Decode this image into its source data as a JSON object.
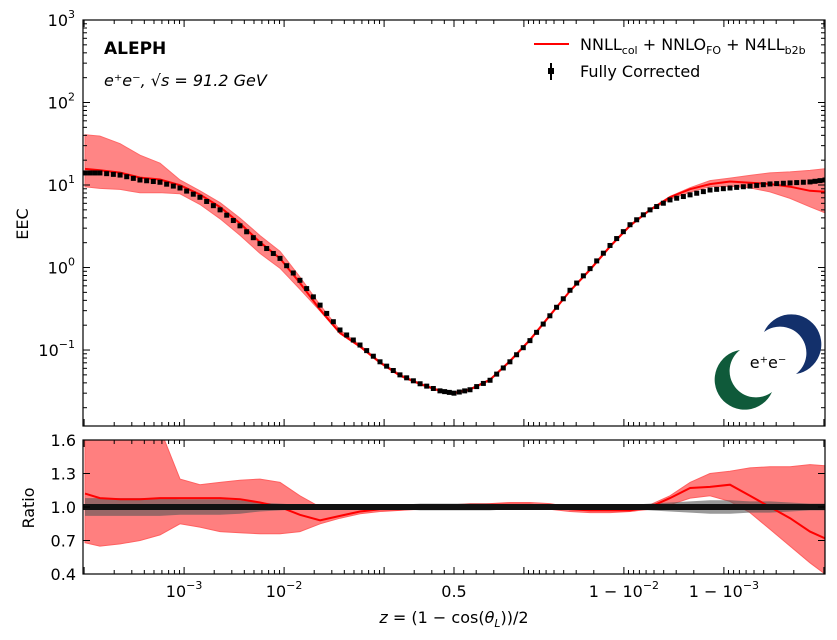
{
  "chart_data": [
    {
      "type": "line",
      "panel": "main",
      "ylabel": "EEC",
      "yscale": "log",
      "xscale": "log-mirrored about 0.5",
      "xlim": [
        9.75e-05,
        0.9999025
      ],
      "ylim": [
        0.012,
        1000
      ],
      "y_ticks": [
        {
          "v": 1000,
          "base": "10",
          "exp": "3"
        },
        {
          "v": 100,
          "base": "10",
          "exp": "2"
        },
        {
          "v": 10,
          "base": "10",
          "exp": "1"
        },
        {
          "v": 1,
          "base": "10",
          "exp": "0"
        },
        {
          "v": 0.1,
          "base": "10",
          "exp": "−1"
        }
      ],
      "annotations": {
        "experiment": "ALEPH",
        "process": "e⁺e⁻, √s = 91.2 GeV",
        "logo_text": "e⁺e⁻"
      },
      "legend": {
        "placement": "top-right",
        "theory": {
          "main": "NNLL",
          "sub1": "col",
          "mid": " + NNLO",
          "sub2": "FO",
          "mid2": " + N4LL",
          "sub3": "b2b"
        },
        "data": "Fully Corrected"
      },
      "colors": {
        "theory": "#ff0000",
        "band": "#ff7f7f",
        "data": "#000000",
        "data_band": "#555555"
      },
      "z": [
        0.000102,
        0.000144,
        0.000229,
        0.000362,
        0.000574,
        0.00091,
        0.00144,
        0.00229,
        0.00362,
        0.00574,
        0.0091,
        0.0144,
        0.0229,
        0.0362,
        0.0574,
        0.091,
        0.144,
        0.229,
        0.362,
        0.5,
        0.654,
        0.782,
        0.862,
        0.913,
        0.945,
        0.9654,
        0.9782,
        0.98623,
        0.99131,
        0.99452,
        0.99654,
        0.99782,
        0.998623,
        0.999131,
        0.999452,
        0.999654,
        0.999782,
        0.9998623,
        0.9999025
      ],
      "data_eec": [
        14,
        14,
        13.2,
        11.5,
        10.8,
        9.2,
        7.1,
        5.0,
        3.2,
        1.95,
        1.29,
        0.7,
        0.35,
        0.175,
        0.115,
        0.072,
        0.05,
        0.039,
        0.032,
        0.03,
        0.033,
        0.043,
        0.072,
        0.13,
        0.26,
        0.53,
        0.97,
        1.85,
        3.3,
        5.0,
        6.6,
        7.6,
        8.7,
        9.2,
        9.7,
        10.3,
        10.6,
        10.9,
        11.5
      ]
    },
    {
      "type": "line",
      "panel": "ratio",
      "ylabel": "Ratio",
      "xlabel": "z = (1 − cos(θ_L))/2",
      "xlabel_parts": {
        "pre": "z",
        "eq": " = (1 − cos(",
        "theta": "θ",
        "sub": "L",
        "post": "))/2"
      },
      "ylim": [
        0.4,
        1.6
      ],
      "y_ticks": [
        "1.6",
        "1.3",
        "1.0",
        "0.7",
        "0.4"
      ],
      "x_ticks": [
        {
          "z": 0.001,
          "pre": "",
          "base": "10",
          "exp": "−3"
        },
        {
          "z": 0.01,
          "pre": "",
          "base": "10",
          "exp": "−2"
        },
        {
          "z": 0.5,
          "pre": "0.5",
          "base": "",
          "exp": ""
        },
        {
          "z": 0.99,
          "pre": "1 − ",
          "base": "10",
          "exp": "−2"
        },
        {
          "z": 0.999,
          "pre": "1 − ",
          "base": "10",
          "exp": "−3"
        }
      ],
      "theory_ratio": [
        1.12,
        1.08,
        1.07,
        1.07,
        1.08,
        1.08,
        1.08,
        1.08,
        1.07,
        1.04,
        1.0,
        0.93,
        0.88,
        0.92,
        0.96,
        0.98,
        0.98,
        0.99,
        1.0,
        1.0,
        1.01,
        1.02,
        1.02,
        1.02,
        1.01,
        0.98,
        0.97,
        0.97,
        0.97,
        1.0,
        1.08,
        1.17,
        1.18,
        1.2,
        1.1,
        1.0,
        0.9,
        0.78,
        0.72
      ],
      "theory_band_high": [
        2.9,
        2.8,
        2.4,
        2.0,
        1.7,
        1.25,
        1.2,
        1.22,
        1.24,
        1.25,
        1.22,
        1.1,
        1.0,
        1.0,
        1.0,
        1.01,
        1.02,
        1.02,
        1.02,
        1.02,
        1.03,
        1.03,
        1.04,
        1.04,
        1.03,
        1.0,
        1.0,
        1.0,
        1.0,
        1.02,
        1.1,
        1.22,
        1.3,
        1.32,
        1.35,
        1.36,
        1.36,
        1.38,
        1.37
      ],
      "theory_band_low": [
        0.68,
        0.65,
        0.67,
        0.7,
        0.75,
        0.85,
        0.82,
        0.78,
        0.77,
        0.76,
        0.76,
        0.78,
        0.85,
        0.9,
        0.94,
        0.96,
        0.97,
        0.98,
        0.98,
        0.98,
        0.99,
        0.99,
        0.99,
        0.99,
        0.98,
        0.96,
        0.95,
        0.95,
        0.96,
        0.98,
        1.02,
        1.08,
        1.1,
        1.05,
        0.95,
        0.8,
        0.65,
        0.5,
        0.4
      ],
      "data_rel_err": [
        0.08,
        0.08,
        0.08,
        0.08,
        0.08,
        0.07,
        0.07,
        0.07,
        0.06,
        0.04,
        0.03,
        0.02,
        0.02,
        0.02,
        0.02,
        0.02,
        0.02,
        0.03,
        0.03,
        0.03,
        0.03,
        0.03,
        0.02,
        0.02,
        0.02,
        0.02,
        0.02,
        0.02,
        0.02,
        0.03,
        0.04,
        0.05,
        0.06,
        0.06,
        0.05,
        0.05,
        0.04,
        0.03,
        0.03
      ]
    }
  ]
}
